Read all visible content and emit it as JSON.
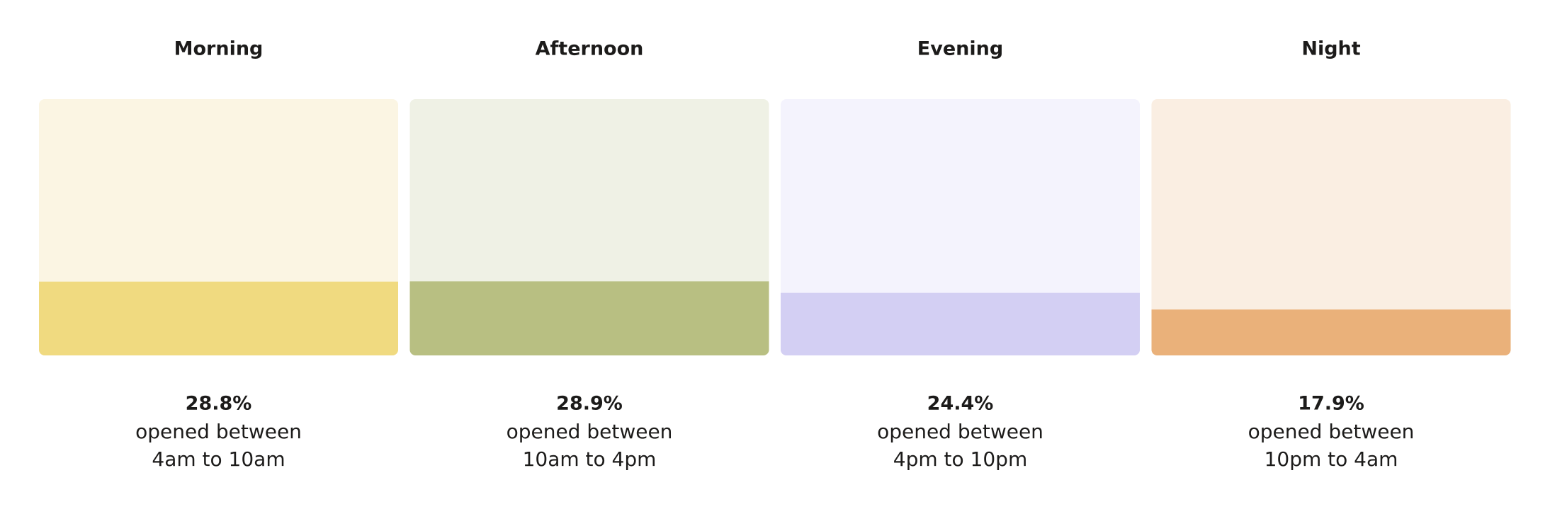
{
  "chart_data": {
    "type": "bar",
    "categories": [
      "Morning",
      "Afternoon",
      "Evening",
      "Night"
    ],
    "values": [
      28.8,
      28.9,
      24.4,
      17.9
    ],
    "value_labels": [
      "28.8%",
      "28.9%",
      "24.4%",
      "17.9%"
    ],
    "captions": [
      "opened between",
      "opened between",
      "opened between",
      "opened between"
    ],
    "time_ranges": [
      "4am to 10am",
      "10am to 4pm",
      "4pm to 10pm",
      "10pm to 4am"
    ],
    "colors": [
      "#f0da80",
      "#b8bf82",
      "#d3cff3",
      "#eab17a"
    ],
    "background_colors": [
      "#fbf5e3",
      "#eff1e5",
      "#f4f3fd",
      "#faeee2"
    ],
    "ylim": [
      0,
      100
    ]
  }
}
